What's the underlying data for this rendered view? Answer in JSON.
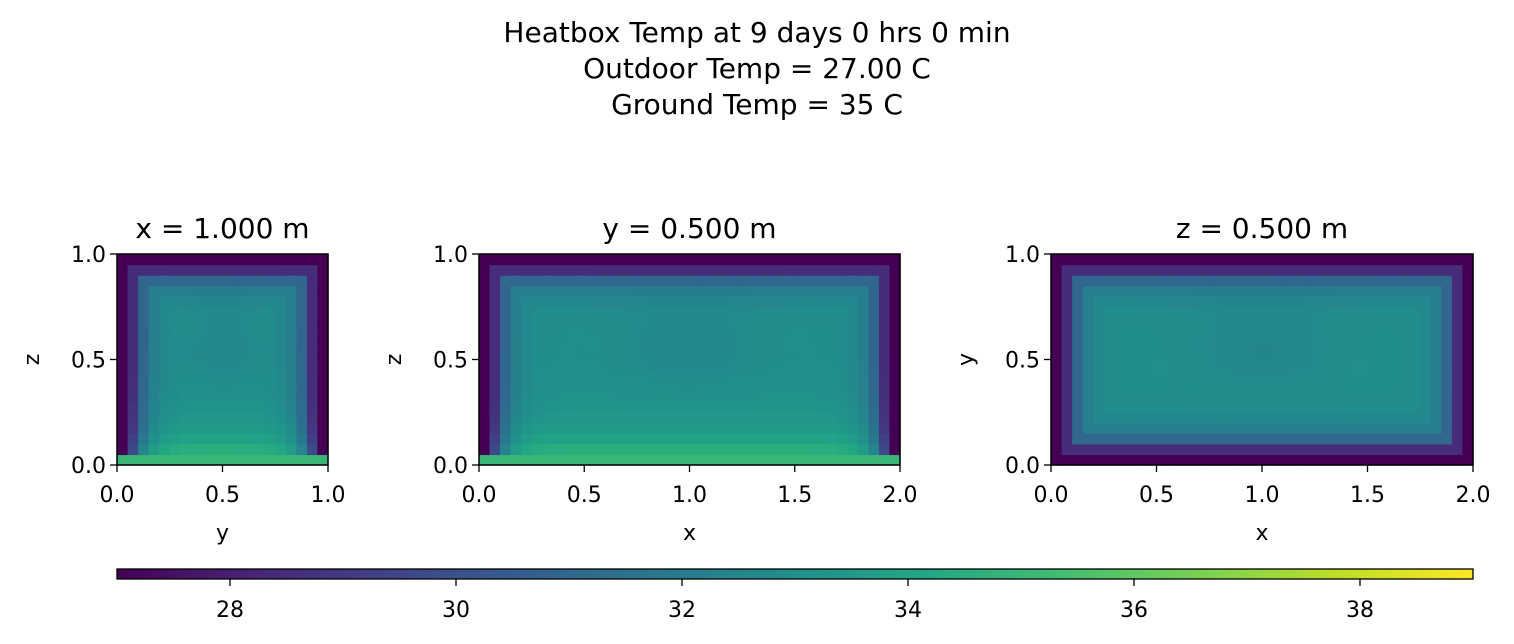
{
  "figure": {
    "title_lines": [
      "Heatbox Temp at 9 days 0 hrs 0 min",
      "Outdoor Temp = 27.00 C",
      "Ground Temp = 35 C"
    ]
  },
  "chart_data": [
    {
      "type": "heatmap",
      "title": "x = 1.000 m",
      "xlabel": "y",
      "ylabel": "z",
      "xlim": [
        0,
        1
      ],
      "ylim": [
        0,
        1
      ],
      "xticks": [
        "0.0",
        "0.5",
        "1.0"
      ],
      "yticks": [
        "0.0",
        "0.5",
        "1.0"
      ],
      "grid": false,
      "wall_temp": 27.0,
      "ground_temp": 35.0,
      "interior_temp_center": 33.0,
      "note_rows": 20,
      "note_cols": 20
    },
    {
      "type": "heatmap",
      "title": "y = 0.500 m",
      "xlabel": "x",
      "ylabel": "z",
      "xlim": [
        0,
        2
      ],
      "ylim": [
        0,
        1
      ],
      "xticks": [
        "0.0",
        "0.5",
        "1.0",
        "1.5",
        "2.0"
      ],
      "yticks": [
        "0.0",
        "0.5",
        "1.0"
      ],
      "grid": false,
      "wall_temp": 27.0,
      "ground_temp": 35.0,
      "interior_temp_center": 33.0
    },
    {
      "type": "heatmap",
      "title": "z = 0.500 m",
      "xlabel": "x",
      "ylabel": "y",
      "xlim": [
        0,
        2
      ],
      "ylim": [
        0,
        1
      ],
      "xticks": [
        "0.0",
        "0.5",
        "1.0",
        "1.5",
        "2.0"
      ],
      "yticks": [
        "0.0",
        "0.5",
        "1.0"
      ],
      "grid": false,
      "wall_temp": 27.0,
      "interior_temp_center": 33.0
    }
  ],
  "colorbar": {
    "colormap": "viridis",
    "vmin": 27,
    "vmax": 39,
    "ticks": [
      "28",
      "30",
      "32",
      "34",
      "36",
      "38"
    ],
    "orientation": "horizontal"
  }
}
